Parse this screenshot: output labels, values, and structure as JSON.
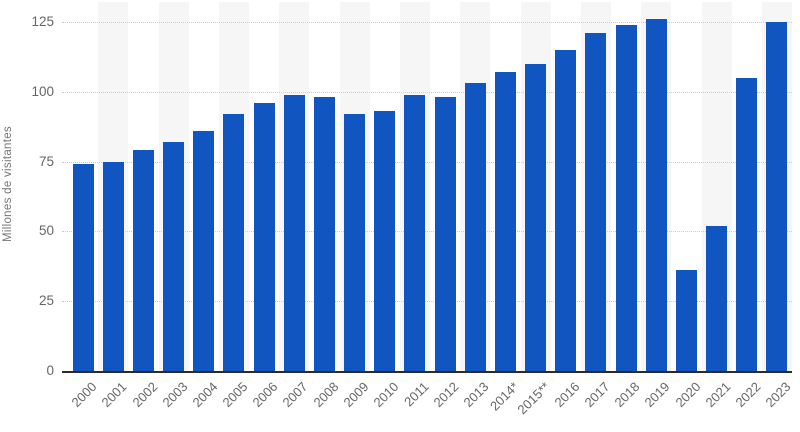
{
  "chart_data": {
    "type": "bar",
    "title": "",
    "xlabel": "",
    "ylabel": "Millones de visitantes",
    "categories": [
      "2000",
      "2001",
      "2002",
      "2003",
      "2004",
      "2005",
      "2006",
      "2007",
      "2008",
      "2009",
      "2010",
      "2011",
      "2012",
      "2013",
      "2014*",
      "2015**",
      "2016",
      "2017",
      "2018",
      "2019",
      "2020",
      "2021",
      "2022",
      "2023"
    ],
    "values": [
      74,
      75,
      79,
      82,
      86,
      92,
      96,
      99,
      98,
      92,
      93,
      99,
      98,
      103,
      107,
      110,
      115,
      121,
      124,
      126,
      36,
      52,
      105,
      125
    ],
    "y_ticks": [
      0,
      25,
      50,
      75,
      100,
      125
    ],
    "ylim": [
      0,
      132
    ],
    "grid": "horizontal-dotted",
    "legend": "none",
    "plot_bands": "alternating light vertical column bands behind odd-year columns",
    "colors": {
      "bar": "#1155c0",
      "grid": "#cccccc",
      "axis_line": "#2b2b2b",
      "tick_label": "#666666",
      "axis_title": "#757575",
      "band": "#f6f6f6",
      "background": "#ffffff"
    }
  }
}
